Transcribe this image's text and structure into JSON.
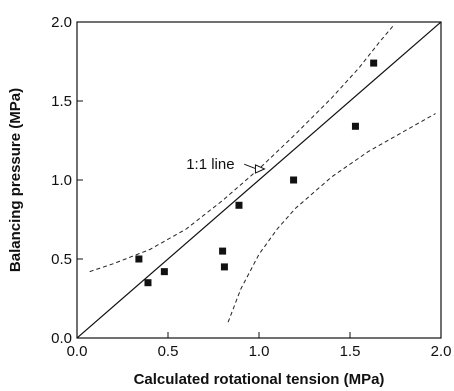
{
  "chart_data": {
    "type": "scatter",
    "title": "",
    "xlabel": "Calculated rotational tension (MPa)",
    "ylabel": "Balancing pressure (MPa)",
    "xlim": [
      0.0,
      2.0
    ],
    "ylim": [
      0.0,
      2.0
    ],
    "xticks": [
      "0.0",
      "0.5",
      "1.0",
      "1.5",
      "2.0"
    ],
    "yticks": [
      "0.0",
      "0.5",
      "1.0",
      "1.5",
      "2.0"
    ],
    "grid": false,
    "points": [
      {
        "x": 0.34,
        "y": 0.5
      },
      {
        "x": 0.39,
        "y": 0.35
      },
      {
        "x": 0.48,
        "y": 0.42
      },
      {
        "x": 0.8,
        "y": 0.55
      },
      {
        "x": 0.81,
        "y": 0.45
      },
      {
        "x": 0.89,
        "y": 0.84
      },
      {
        "x": 1.19,
        "y": 1.0
      },
      {
        "x": 1.53,
        "y": 1.34
      },
      {
        "x": 1.63,
        "y": 1.74
      }
    ],
    "identity_line": {
      "from": [
        0.0,
        0.0
      ],
      "to": [
        2.0,
        2.0
      ]
    },
    "upper_band": [
      [
        0.07,
        0.42
      ],
      [
        0.2,
        0.47
      ],
      [
        0.4,
        0.56
      ],
      [
        0.6,
        0.69
      ],
      [
        0.8,
        0.87
      ],
      [
        1.0,
        1.07
      ],
      [
        1.2,
        1.29
      ],
      [
        1.4,
        1.52
      ],
      [
        1.55,
        1.71
      ],
      [
        1.66,
        1.87
      ],
      [
        1.74,
        1.98
      ]
    ],
    "lower_band": [
      [
        0.83,
        0.1
      ],
      [
        0.9,
        0.31
      ],
      [
        1.0,
        0.53
      ],
      [
        1.1,
        0.69
      ],
      [
        1.2,
        0.82
      ],
      [
        1.4,
        1.02
      ],
      [
        1.6,
        1.18
      ],
      [
        1.8,
        1.31
      ],
      [
        1.97,
        1.42
      ]
    ],
    "annotations": [
      {
        "text": "1:1 line",
        "x": 0.6,
        "y": 1.1,
        "arrow_to": [
          1.03,
          1.07
        ]
      }
    ]
  }
}
